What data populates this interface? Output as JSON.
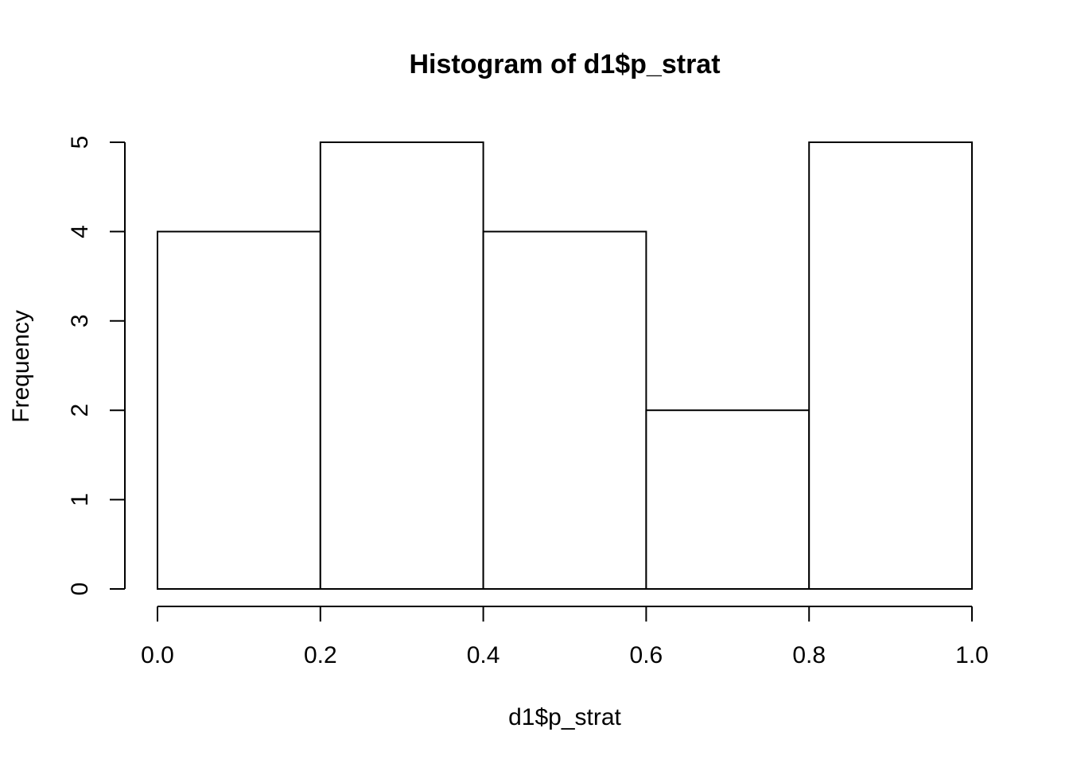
{
  "chart_data": {
    "type": "bar",
    "title": "Histogram of d1$p_strat",
    "xlabel": "d1$p_strat",
    "ylabel": "Frequency",
    "bins": [
      {
        "start": 0.0,
        "end": 0.2,
        "count": 4
      },
      {
        "start": 0.2,
        "end": 0.4,
        "count": 5
      },
      {
        "start": 0.4,
        "end": 0.6,
        "count": 4
      },
      {
        "start": 0.6,
        "end": 0.8,
        "count": 2
      },
      {
        "start": 0.8,
        "end": 1.0,
        "count": 5
      }
    ],
    "xlim": [
      0.0,
      1.0
    ],
    "ylim": [
      0,
      5
    ],
    "x_ticks": [
      "0.0",
      "0.2",
      "0.4",
      "0.6",
      "0.8",
      "1.0"
    ],
    "x_tick_values": [
      0.0,
      0.2,
      0.4,
      0.6,
      0.8,
      1.0
    ],
    "y_ticks": [
      "0",
      "1",
      "2",
      "3",
      "4",
      "5"
    ],
    "y_tick_values": [
      0,
      1,
      2,
      3,
      4,
      5
    ],
    "grid": false,
    "legend": "none",
    "bar_fill": "#ffffff",
    "bar_stroke": "#000000"
  }
}
